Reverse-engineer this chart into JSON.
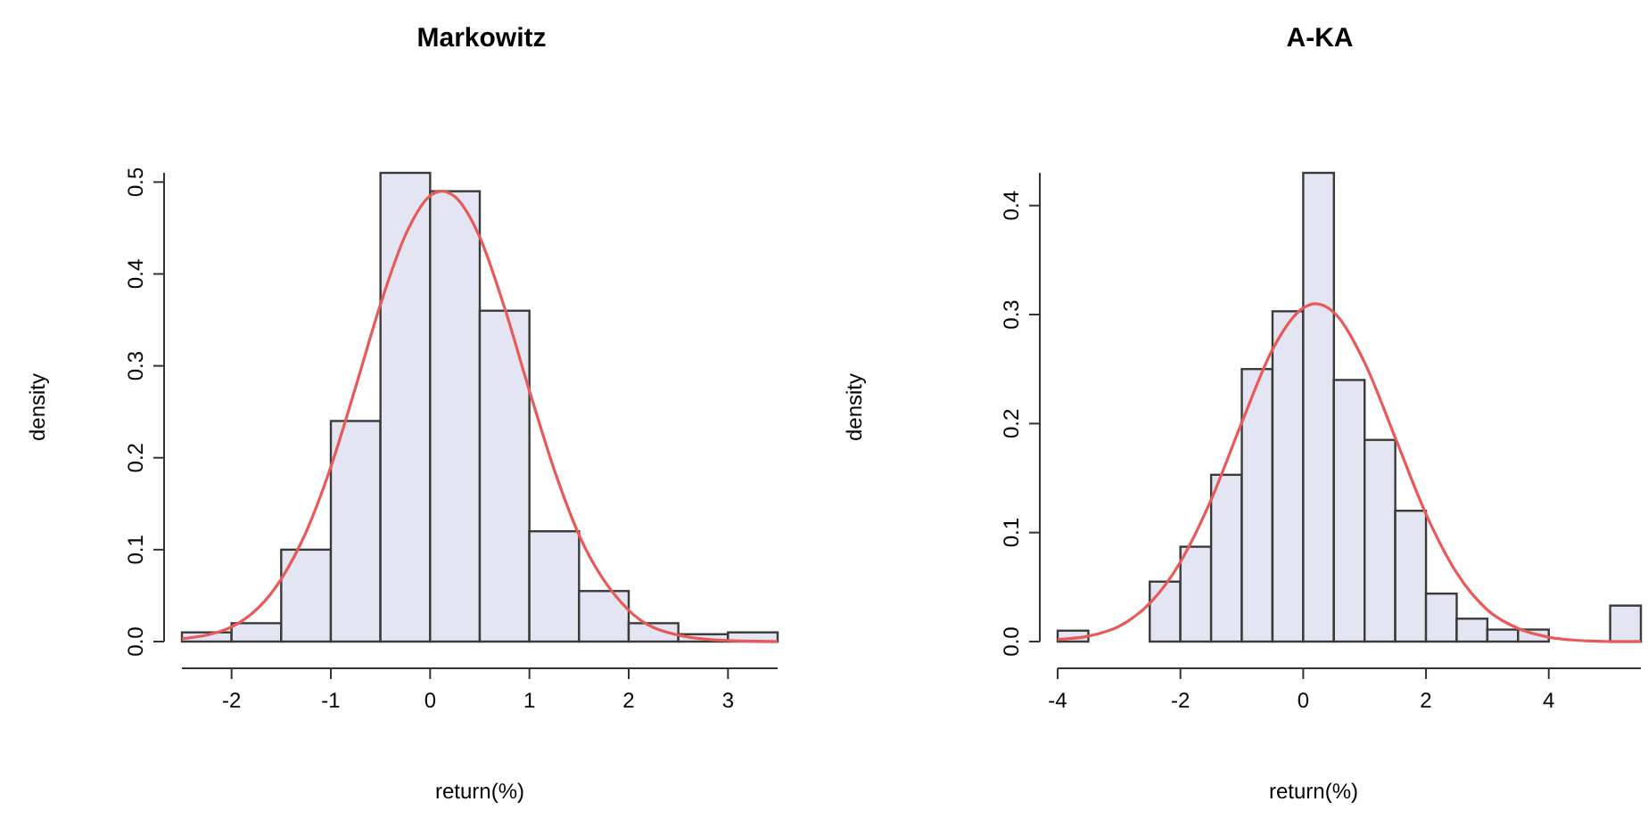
{
  "chart_data": [
    {
      "type": "histogram",
      "title": "Markowitz",
      "xlabel": "return(%)",
      "ylabel": "density",
      "xlim": [
        -2.5,
        3.5
      ],
      "ylim": [
        0,
        0.51
      ],
      "xticks": [
        -2,
        -1,
        0,
        1,
        2,
        3
      ],
      "yticks": [
        {
          "value": 0,
          "label": "0.0"
        },
        {
          "value": 0.1,
          "label": "0.1"
        },
        {
          "value": 0.2,
          "label": "0.2"
        },
        {
          "value": 0.3,
          "label": "0.3"
        },
        {
          "value": 0.4,
          "label": "0.4"
        },
        {
          "value": 0.5,
          "label": "0.5"
        }
      ],
      "series": [
        {
          "type": "histogram",
          "color": "#e4e5f3",
          "bins": [
            -2.5,
            -2,
            -1.5,
            -1,
            -0.5,
            0,
            0.5,
            1,
            1.5,
            2,
            2.5,
            3,
            3.5
          ],
          "values": [
            0.01,
            0.02,
            0.1,
            0.24,
            0.51,
            0.49,
            0.36,
            0.12,
            0.055,
            0.02,
            0.008,
            0.01
          ]
        },
        {
          "type": "line",
          "color": "#e8595a",
          "x": [
            -2.5,
            -2,
            -1.5,
            -1.25,
            -1,
            -0.75,
            -0.5,
            -0.25,
            0,
            0.12,
            0.25,
            0.5,
            0.75,
            1,
            1.25,
            1.5,
            2,
            2.5,
            3,
            3.5
          ],
          "values": [
            0.003,
            0.016,
            0.068,
            0.119,
            0.19,
            0.277,
            0.367,
            0.442,
            0.485,
            0.49,
            0.484,
            0.44,
            0.363,
            0.273,
            0.187,
            0.116,
            0.034,
            0.007,
            0.001,
            0
          ]
        }
      ]
    },
    {
      "type": "histogram",
      "title": "A-KA",
      "xlabel": "return(%)",
      "ylabel": "density",
      "xlim": [
        -4,
        5.5
      ],
      "ylim": [
        0,
        0.43
      ],
      "xticks": [
        -4,
        -2,
        0,
        2,
        4
      ],
      "yticks": [
        {
          "value": 0,
          "label": "0.0"
        },
        {
          "value": 0.1,
          "label": "0.1"
        },
        {
          "value": 0.2,
          "label": "0.2"
        },
        {
          "value": 0.3,
          "label": "0.3"
        },
        {
          "value": 0.4,
          "label": "0.4"
        }
      ],
      "series": [
        {
          "type": "histogram",
          "color": "#e4e5f3",
          "bins": [
            -4,
            -3.5,
            -3,
            -2.5,
            -2,
            -1.5,
            -1,
            -0.5,
            0,
            0.5,
            1,
            1.5,
            2,
            2.5,
            3,
            3.5,
            4,
            4.5,
            5,
            5.5
          ],
          "values": [
            0.01,
            0,
            0,
            0.055,
            0.087,
            0.153,
            0.25,
            0.303,
            0.43,
            0.24,
            0.185,
            0.12,
            0.044,
            0.021,
            0.011,
            0.011,
            0,
            0,
            0.033
          ]
        },
        {
          "type": "line",
          "color": "#e8595a",
          "x": [
            -4,
            -3.5,
            -3,
            -2.5,
            -2,
            -1.5,
            -1,
            -0.5,
            0,
            0.2,
            0.5,
            1,
            1.5,
            2,
            2.5,
            3,
            3.5,
            4,
            4.5,
            5,
            5.5
          ],
          "values": [
            0.002,
            0.005,
            0.014,
            0.035,
            0.073,
            0.13,
            0.201,
            0.268,
            0.306,
            0.31,
            0.302,
            0.256,
            0.187,
            0.117,
            0.063,
            0.029,
            0.012,
            0.004,
            0.001,
            0,
            0
          ]
        }
      ]
    }
  ]
}
